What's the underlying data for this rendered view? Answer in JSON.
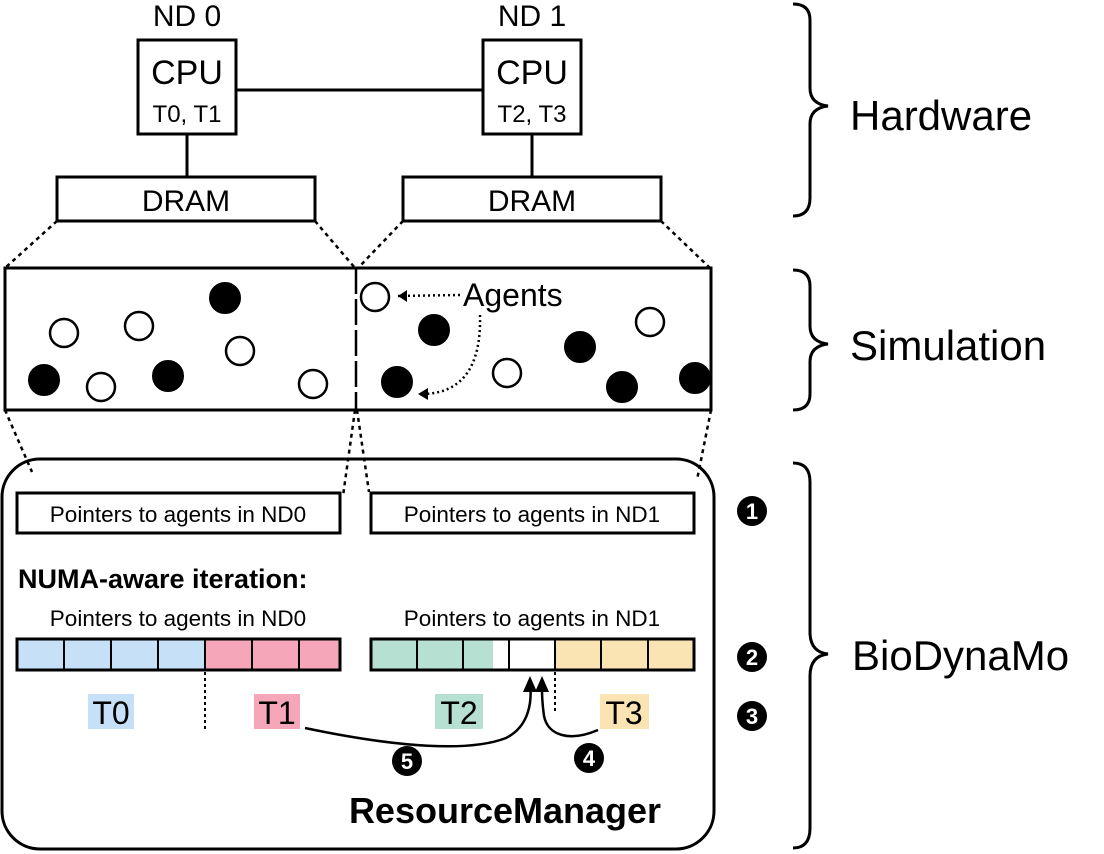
{
  "hardware": {
    "nodes": [
      {
        "label": "ND 0",
        "cpu": "CPU",
        "threads": "T0, T1",
        "memory": "DRAM"
      },
      {
        "label": "ND 1",
        "cpu": "CPU",
        "threads": "T2, T3",
        "memory": "DRAM"
      }
    ]
  },
  "simulation": {
    "agents_label": "Agents"
  },
  "layers": {
    "hardware": "Hardware",
    "simulation": "Simulation",
    "biodynamo": "BioDynaMo"
  },
  "biodynamo": {
    "pointers_nd0": "Pointers to agents in ND0",
    "pointers_nd1": "Pointers to agents in ND1",
    "iteration_title": "NUMA-aware iteration:",
    "array_label_nd0": "Pointers to agents in ND0",
    "array_label_nd1": "Pointers to agents in ND1",
    "threads": [
      "T0",
      "T1",
      "T2",
      "T3"
    ],
    "resource_manager": "ResourceManager",
    "steps": [
      "1",
      "2",
      "3",
      "4",
      "5"
    ]
  },
  "colors": {
    "t0": "#c6e0f7",
    "t1": "#f5a7b9",
    "t2": "#b5e0d2",
    "t3": "#fbe4b3",
    "outline": "#000000"
  }
}
